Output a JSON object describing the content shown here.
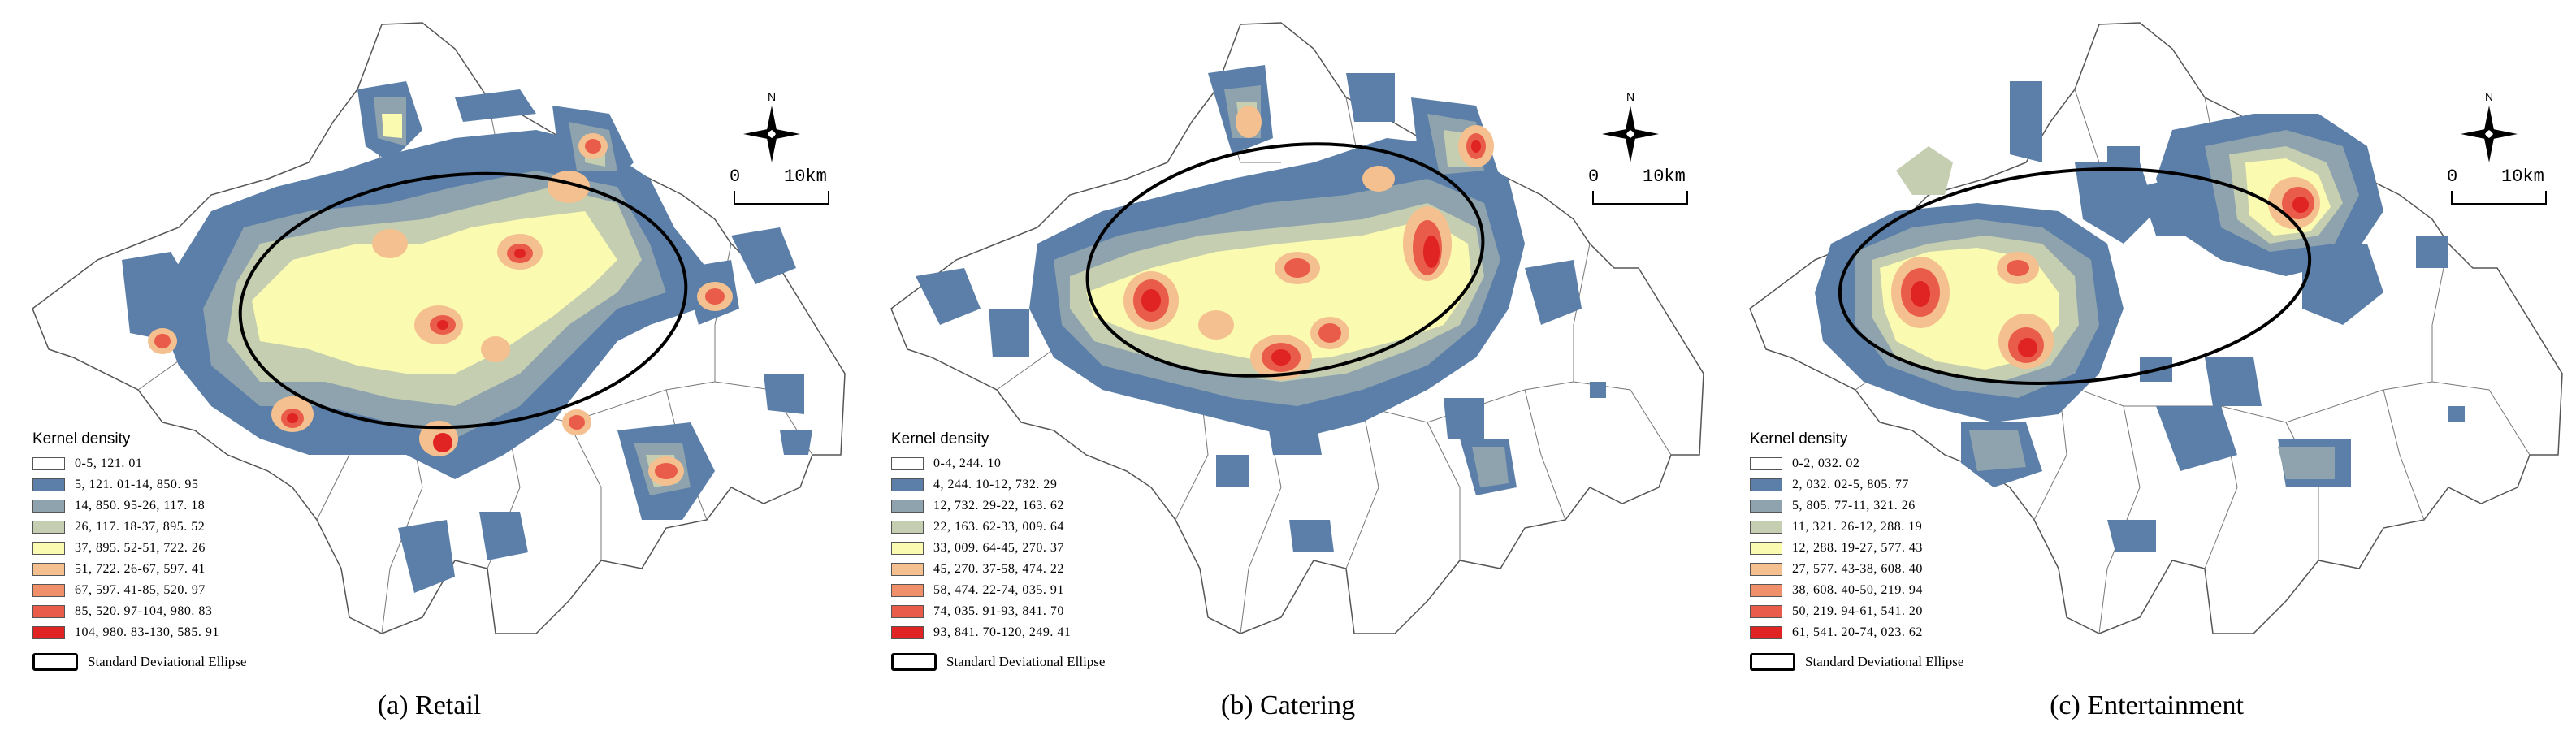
{
  "panels": [
    {
      "caption": "(a) Retail",
      "legend_title": "Kernel density",
      "classes": [
        {
          "label": "0-5, 121. 01",
          "color": "#ffffff"
        },
        {
          "label": "5, 121. 01-14, 850. 95",
          "color": "#5b7fa8"
        },
        {
          "label": "14, 850. 95-26, 117. 18",
          "color": "#8ea3ad"
        },
        {
          "label": "26, 117. 18-37, 895. 52",
          "color": "#c5ceb0"
        },
        {
          "label": "37, 895. 52-51, 722. 26",
          "color": "#fafab0"
        },
        {
          "label": "51, 722. 26-67, 597. 41",
          "color": "#f5c08f"
        },
        {
          "label": "67, 597. 41-85, 520. 97",
          "color": "#f0906a"
        },
        {
          "label": "85, 520. 97-104, 980. 83",
          "color": "#ea5c4a"
        },
        {
          "label": "104, 980. 83-130, 585. 91",
          "color": "#e02323"
        }
      ],
      "ellipse_label": "Standard Deviational Ellipse",
      "north": "N",
      "scale_zero": "0",
      "scale_end": "10km"
    },
    {
      "caption": "(b) Catering",
      "legend_title": "Kernel density",
      "classes": [
        {
          "label": "0-4, 244. 10",
          "color": "#ffffff"
        },
        {
          "label": "4, 244. 10-12, 732. 29",
          "color": "#5b7fa8"
        },
        {
          "label": "12, 732. 29-22, 163. 62",
          "color": "#8ea3ad"
        },
        {
          "label": "22, 163. 62-33, 009. 64",
          "color": "#c5ceb0"
        },
        {
          "label": "33, 009. 64-45, 270. 37",
          "color": "#fafab0"
        },
        {
          "label": "45, 270. 37-58, 474. 22",
          "color": "#f5c08f"
        },
        {
          "label": "58, 474. 22-74, 035. 91",
          "color": "#f0906a"
        },
        {
          "label": "74, 035. 91-93, 841. 70",
          "color": "#ea5c4a"
        },
        {
          "label": "93, 841. 70-120, 249. 41",
          "color": "#e02323"
        }
      ],
      "ellipse_label": "Standard Deviational Ellipse",
      "north": "N",
      "scale_zero": "0",
      "scale_end": "10km"
    },
    {
      "caption": "(c) Entertainment",
      "legend_title": "Kernel density",
      "classes": [
        {
          "label": "0-2, 032. 02",
          "color": "#ffffff"
        },
        {
          "label": "2, 032. 02-5, 805. 77",
          "color": "#5b7fa8"
        },
        {
          "label": "5, 805. 77-11, 321. 26",
          "color": "#8ea3ad"
        },
        {
          "label": "11, 321. 26-12, 288. 19",
          "color": "#c5ceb0"
        },
        {
          "label": "12, 288. 19-27, 577. 43",
          "color": "#fafab0"
        },
        {
          "label": "27, 577. 43-38, 608. 40",
          "color": "#f5c08f"
        },
        {
          "label": "38, 608. 40-50, 219. 94",
          "color": "#f0906a"
        },
        {
          "label": "50, 219. 94-61, 541. 20",
          "color": "#ea5c4a"
        },
        {
          "label": "61, 541. 20-74, 023. 62",
          "color": "#e02323"
        }
      ],
      "ellipse_label": "Standard Deviational Ellipse",
      "north": "N",
      "scale_zero": "0",
      "scale_end": "10km"
    }
  ]
}
